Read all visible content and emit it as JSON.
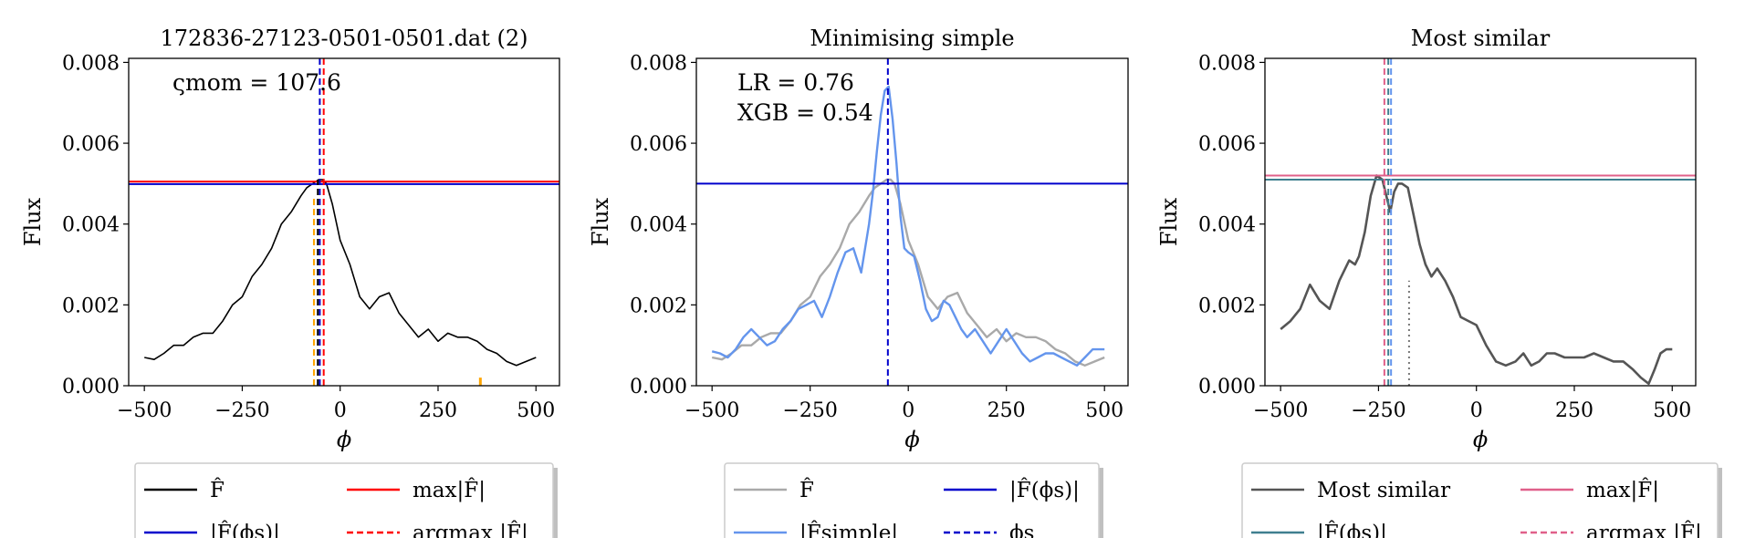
{
  "chart_data": [
    {
      "type": "line",
      "title": "172836-27123-0501-0501.dat (2)",
      "xlabel": "ϕ",
      "ylabel": "Flux",
      "xlim": [
        -540,
        560
      ],
      "ylim": [
        0,
        0.0081
      ],
      "xticks": [
        -500,
        -250,
        0,
        250,
        500
      ],
      "xtick_labels": [
        "−500",
        "−250",
        "0",
        "250",
        "500"
      ],
      "yticks": [
        0,
        0.002,
        0.004,
        0.006,
        0.008
      ],
      "ytick_labels": [
        "0.000",
        "0.002",
        "0.004",
        "0.006",
        "0.008"
      ],
      "annotations": [
        {
          "text": "ςmom = 107.6"
        }
      ],
      "series": [
        {
          "name": "F̂",
          "color": "#000000",
          "width": 1.6,
          "x": [
            -500,
            -475,
            -450,
            -425,
            -400,
            -375,
            -350,
            -325,
            -300,
            -275,
            -250,
            -225,
            -200,
            -175,
            -150,
            -125,
            -100,
            -85,
            -70,
            -55,
            -45,
            -35,
            -20,
            0,
            25,
            50,
            75,
            100,
            125,
            150,
            175,
            200,
            225,
            250,
            275,
            300,
            325,
            350,
            375,
            400,
            425,
            450,
            475,
            500
          ],
          "y": [
            0.0007,
            0.00065,
            0.0008,
            0.001,
            0.001,
            0.0012,
            0.0013,
            0.0013,
            0.0016,
            0.002,
            0.0022,
            0.0027,
            0.003,
            0.0034,
            0.004,
            0.0043,
            0.0047,
            0.0049,
            0.005,
            0.0051,
            0.0051,
            0.005,
            0.0045,
            0.0036,
            0.003,
            0.0022,
            0.0019,
            0.0022,
            0.0023,
            0.0018,
            0.0015,
            0.0012,
            0.0014,
            0.0011,
            0.0013,
            0.0012,
            0.0012,
            0.0011,
            0.0009,
            0.0008,
            0.0006,
            0.0005,
            0.0006,
            0.0007
          ]
        }
      ],
      "hlines": [
        {
          "name": "max|F̂|",
          "y": 0.00505,
          "color": "#ff0000",
          "style": "solid"
        },
        {
          "name": "|F̂(ϕs)|",
          "y": 0.00499,
          "color": "#0000cc",
          "style": "solid"
        }
      ],
      "vlines": [
        {
          "x": -52,
          "color": "#0000cc",
          "style": "dashed",
          "y0": 0,
          "y1": 0.0081
        },
        {
          "x": -42,
          "color": "#ff0000",
          "style": "dashed",
          "y0": 0,
          "y1": 0.0081
        },
        {
          "x": -67,
          "color": "#ffa500",
          "style": "dashed",
          "y0": 0,
          "y1": 0.0047
        },
        {
          "x": -57,
          "color": "#000000",
          "style": "dashed",
          "y0": 0,
          "y1": 0.0051
        },
        {
          "x": 358,
          "color": "#ffa500",
          "style": "solid",
          "y0": 0,
          "y1": 0.0002
        }
      ],
      "legend": {
        "position": "below",
        "entries": [
          {
            "label": "F̂",
            "color": "#000000",
            "style": "solid"
          },
          {
            "label": "max|F̂|",
            "color": "#ff0000",
            "style": "solid"
          },
          {
            "label": "|F̂(ϕs)|",
            "color": "#0000cc",
            "style": "solid"
          },
          {
            "label": "argmax |F̂|",
            "color": "#ff0000",
            "style": "dashed"
          }
        ]
      }
    },
    {
      "type": "line",
      "title": "Minimising simple",
      "xlabel": "ϕ",
      "ylabel": "Flux",
      "xlim": [
        -540,
        560
      ],
      "ylim": [
        0,
        0.0081
      ],
      "xticks": [
        -500,
        -250,
        0,
        250,
        500
      ],
      "xtick_labels": [
        "−500",
        "−250",
        "0",
        "250",
        "500"
      ],
      "yticks": [
        0,
        0.002,
        0.004,
        0.006,
        0.008
      ],
      "ytick_labels": [
        "0.000",
        "0.002",
        "0.004",
        "0.006",
        "0.008"
      ],
      "annotations": [
        {
          "text": "LR = 0.76"
        },
        {
          "text": "XGB = 0.54"
        }
      ],
      "series": [
        {
          "name": "F̂",
          "color": "#a9a9a9",
          "width": 2.4,
          "x": [
            -500,
            -475,
            -450,
            -425,
            -400,
            -375,
            -350,
            -325,
            -300,
            -275,
            -250,
            -225,
            -200,
            -175,
            -150,
            -125,
            -100,
            -85,
            -70,
            -55,
            -45,
            -35,
            -20,
            0,
            25,
            50,
            75,
            100,
            125,
            150,
            175,
            200,
            225,
            250,
            275,
            300,
            325,
            350,
            375,
            400,
            425,
            450,
            475,
            500
          ],
          "y": [
            0.0007,
            0.00065,
            0.0008,
            0.001,
            0.001,
            0.0012,
            0.0013,
            0.0013,
            0.0016,
            0.002,
            0.0022,
            0.0027,
            0.003,
            0.0034,
            0.004,
            0.0043,
            0.0047,
            0.0049,
            0.005,
            0.0051,
            0.0051,
            0.005,
            0.0045,
            0.0036,
            0.003,
            0.0022,
            0.0019,
            0.0022,
            0.0023,
            0.0018,
            0.0015,
            0.0012,
            0.0014,
            0.0011,
            0.0013,
            0.0012,
            0.0012,
            0.0011,
            0.0009,
            0.0008,
            0.0006,
            0.0005,
            0.0006,
            0.0007
          ]
        },
        {
          "name": "|F̂simple|",
          "color": "#6495ed",
          "width": 2.4,
          "x": [
            -500,
            -480,
            -460,
            -440,
            -420,
            -400,
            -380,
            -360,
            -340,
            -320,
            -300,
            -280,
            -260,
            -240,
            -220,
            -200,
            -180,
            -160,
            -140,
            -120,
            -100,
            -90,
            -80,
            -70,
            -60,
            -50,
            -40,
            -30,
            -20,
            -10,
            0,
            15,
            30,
            45,
            60,
            75,
            90,
            105,
            120,
            135,
            150,
            170,
            190,
            210,
            230,
            250,
            270,
            290,
            310,
            330,
            350,
            370,
            390,
            410,
            430,
            450,
            470,
            490,
            500
          ],
          "y": [
            0.00085,
            0.0008,
            0.0007,
            0.0009,
            0.0012,
            0.0014,
            0.0012,
            0.001,
            0.0011,
            0.0014,
            0.0016,
            0.0019,
            0.002,
            0.0021,
            0.0017,
            0.0022,
            0.0028,
            0.0033,
            0.0034,
            0.0028,
            0.004,
            0.0048,
            0.0058,
            0.0067,
            0.0073,
            0.0074,
            0.0066,
            0.0055,
            0.0042,
            0.0034,
            0.0033,
            0.0032,
            0.0026,
            0.0019,
            0.0016,
            0.0017,
            0.0021,
            0.002,
            0.0017,
            0.0014,
            0.0012,
            0.0014,
            0.0011,
            0.0008,
            0.0011,
            0.0014,
            0.0011,
            0.0008,
            0.0006,
            0.0007,
            0.0008,
            0.0008,
            0.0007,
            0.0006,
            0.0005,
            0.0007,
            0.0009,
            0.0009,
            0.0009
          ]
        }
      ],
      "hlines": [
        {
          "name": "|F̂(ϕs)|",
          "y": 0.005,
          "color": "#0000cc",
          "style": "solid"
        }
      ],
      "vlines": [
        {
          "x": -52,
          "color": "#0000cc",
          "style": "dashed",
          "y0": 0,
          "y1": 0.0081
        }
      ],
      "legend": {
        "position": "below",
        "entries": [
          {
            "label": "F̂",
            "color": "#a9a9a9",
            "style": "solid"
          },
          {
            "label": "|F̂(ϕs)|",
            "color": "#0000cc",
            "style": "solid"
          },
          {
            "label": "|F̂simple|",
            "color": "#6495ed",
            "style": "solid"
          },
          {
            "label": "ϕs",
            "color": "#0000cc",
            "style": "dashed"
          }
        ]
      }
    },
    {
      "type": "line",
      "title": "Most similar",
      "xlabel": "ϕ",
      "ylabel": "Flux",
      "xlim": [
        -540,
        560
      ],
      "ylim": [
        0,
        0.0081
      ],
      "xticks": [
        -500,
        -250,
        0,
        250,
        500
      ],
      "xtick_labels": [
        "−500",
        "−250",
        "0",
        "250",
        "500"
      ],
      "yticks": [
        0,
        0.002,
        0.004,
        0.006,
        0.008
      ],
      "ytick_labels": [
        "0.000",
        "0.002",
        "0.004",
        "0.006",
        "0.008"
      ],
      "annotations": [],
      "series": [
        {
          "name": "Most similar",
          "color": "#555555",
          "width": 2.6,
          "x": [
            -500,
            -475,
            -450,
            -425,
            -400,
            -375,
            -350,
            -325,
            -310,
            -300,
            -285,
            -270,
            -255,
            -240,
            -230,
            -220,
            -210,
            -200,
            -190,
            -175,
            -160,
            -145,
            -130,
            -115,
            -100,
            -80,
            -60,
            -40,
            -20,
            0,
            25,
            50,
            75,
            100,
            120,
            140,
            160,
            180,
            200,
            225,
            250,
            275,
            300,
            325,
            350,
            375,
            400,
            420,
            440,
            455,
            470,
            485,
            500
          ],
          "y": [
            0.0014,
            0.0016,
            0.0019,
            0.0025,
            0.0021,
            0.0019,
            0.0026,
            0.0031,
            0.003,
            0.0032,
            0.0038,
            0.0047,
            0.0052,
            0.0051,
            0.0047,
            0.0043,
            0.0048,
            0.005,
            0.005,
            0.0049,
            0.0042,
            0.0035,
            0.003,
            0.0027,
            0.0029,
            0.0026,
            0.0022,
            0.0017,
            0.0016,
            0.0015,
            0.001,
            0.0006,
            0.0005,
            0.0006,
            0.0008,
            0.0005,
            0.0006,
            0.0008,
            0.0008,
            0.0007,
            0.0007,
            0.0007,
            0.0008,
            0.0007,
            0.0006,
            0.0006,
            0.0004,
            0.0002,
            5e-05,
            0.0004,
            0.0008,
            0.0009,
            0.0009
          ]
        }
      ],
      "hlines": [
        {
          "name": "max|F̂|",
          "y": 0.0052,
          "color": "#e0608a",
          "style": "solid"
        },
        {
          "name": "|F̂(ϕs)|",
          "y": 0.0051,
          "color": "#3f7f8f",
          "style": "solid"
        }
      ],
      "vlines": [
        {
          "x": -235,
          "color": "#e0608a",
          "style": "dashed",
          "y0": 0,
          "y1": 0.0081
        },
        {
          "x": -225,
          "color": "#3f7f8f",
          "style": "dashed",
          "y0": 0,
          "y1": 0.0081
        },
        {
          "x": -218,
          "color": "#6495ed",
          "style": "dashed",
          "y0": 0,
          "y1": 0.0081
        },
        {
          "x": -172,
          "color": "#777777",
          "style": "dotted",
          "y0": 0,
          "y1": 0.0026
        }
      ],
      "legend": {
        "position": "below",
        "entries": [
          {
            "label": "Most similar",
            "color": "#555555",
            "style": "solid"
          },
          {
            "label": "max|F̂|",
            "color": "#e0608a",
            "style": "solid"
          },
          {
            "label": "|F̂(ϕs)|",
            "color": "#3f7f8f",
            "style": "solid"
          },
          {
            "label": "argmax |F̂|",
            "color": "#e0608a",
            "style": "dashed"
          }
        ]
      }
    }
  ]
}
